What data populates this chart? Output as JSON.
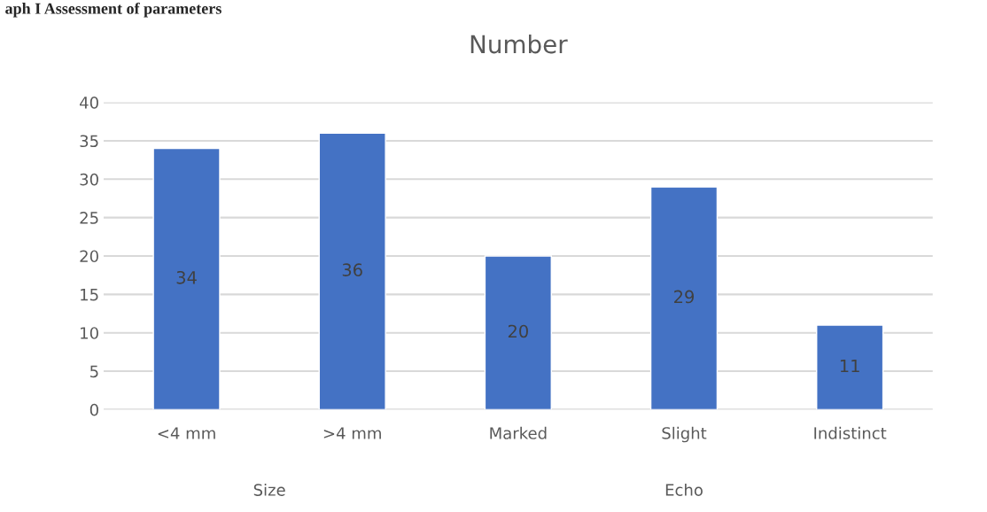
{
  "chart_data": {
    "type": "bar",
    "title": "Number",
    "categories": [
      "<4 mm",
      ">4 mm",
      "Marked",
      "Slight",
      "Indistinct"
    ],
    "values": [
      34,
      36,
      20,
      29,
      11
    ],
    "color": "#4472c4",
    "ylim": [
      0,
      40
    ],
    "yticks": [
      0,
      5,
      10,
      15,
      20,
      25,
      30,
      35,
      40
    ],
    "grid": "y",
    "data_labels": true,
    "annotations": [
      "aph I Assessment of parameters",
      "Size",
      "Echo"
    ]
  }
}
